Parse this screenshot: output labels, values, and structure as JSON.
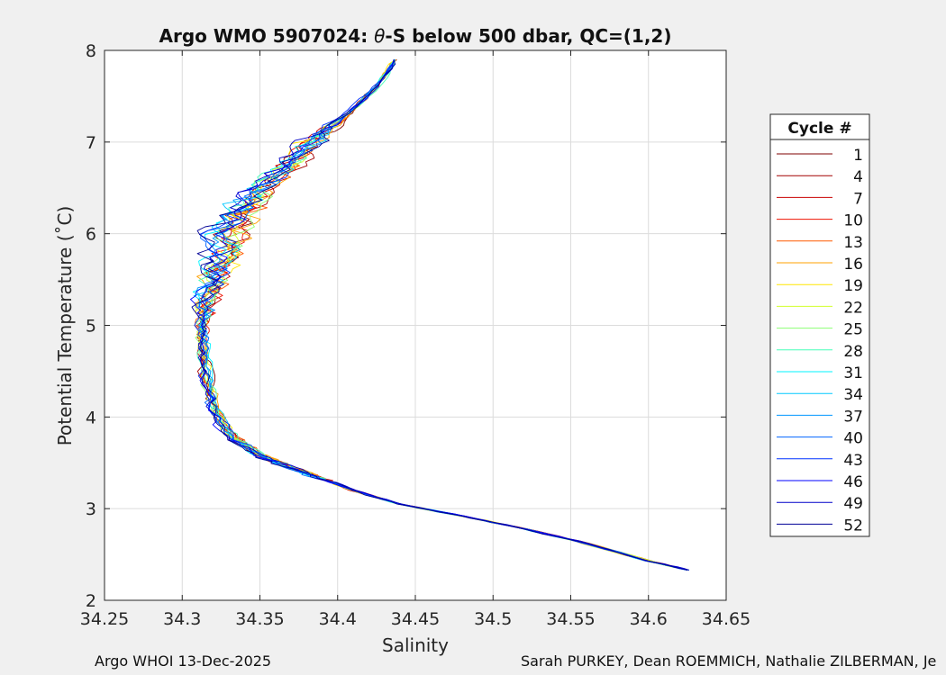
{
  "chart_data": {
    "type": "line",
    "title_prefix": "Argo WMO 5907024: ",
    "title_theta": "θ",
    "title_suffix": "-S below 500 dbar,  QC=(1,2)",
    "xlabel": "Salinity",
    "ylabel": "Potential Temperature (˚C)",
    "xlim": [
      34.25,
      34.65
    ],
    "ylim": [
      2,
      8
    ],
    "xticks": [
      34.25,
      34.3,
      34.35,
      34.4,
      34.45,
      34.5,
      34.55,
      34.6,
      34.65
    ],
    "xtick_labels": [
      "34.25",
      "34.3",
      "34.35",
      "34.4",
      "34.45",
      "34.5",
      "34.55",
      "34.6",
      "34.65"
    ],
    "yticks": [
      2,
      3,
      4,
      5,
      6,
      7,
      8
    ],
    "ytick_labels": [
      "2",
      "3",
      "4",
      "5",
      "6",
      "7",
      "8"
    ],
    "grid": true,
    "legend": {
      "title": "Cycle #",
      "placement": "right",
      "entries": [
        {
          "label": "1",
          "color": "#7f0000"
        },
        {
          "label": "4",
          "color": "#a40000"
        },
        {
          "label": "7",
          "color": "#ca0000"
        },
        {
          "label": "10",
          "color": "#ef1200"
        },
        {
          "label": "13",
          "color": "#ff5a00"
        },
        {
          "label": "16",
          "color": "#ffa000"
        },
        {
          "label": "19",
          "color": "#ffe600"
        },
        {
          "label": "22",
          "color": "#d2ff2d"
        },
        {
          "label": "25",
          "color": "#8cff73"
        },
        {
          "label": "28",
          "color": "#46ffb9"
        },
        {
          "label": "31",
          "color": "#00f4ff"
        },
        {
          "label": "34",
          "color": "#00c8ff"
        },
        {
          "label": "37",
          "color": "#0096ff"
        },
        {
          "label": "40",
          "color": "#0064ff"
        },
        {
          "label": "43",
          "color": "#0032ff"
        },
        {
          "label": "46",
          "color": "#0000ff"
        },
        {
          "label": "49",
          "color": "#0000c8"
        },
        {
          "label": "52",
          "color": "#000096"
        }
      ]
    },
    "mean_profile": {
      "salinity": [
        34.626,
        34.6,
        34.56,
        34.52,
        34.48,
        34.44,
        34.41,
        34.39,
        34.37,
        34.35,
        34.335,
        34.325,
        34.318,
        34.315,
        34.314,
        34.313,
        34.315,
        34.318,
        34.323,
        34.33,
        34.338,
        34.35,
        34.365,
        34.38,
        34.395,
        34.41,
        34.425,
        34.437
      ],
      "theta": [
        2.33,
        2.43,
        2.62,
        2.78,
        2.92,
        3.05,
        3.2,
        3.33,
        3.45,
        3.58,
        3.75,
        3.95,
        4.2,
        4.5,
        4.8,
        5.0,
        5.2,
        5.45,
        5.7,
        5.95,
        6.2,
        6.45,
        6.7,
        6.95,
        7.15,
        7.35,
        7.6,
        7.9
      ]
    }
  },
  "footer": {
    "left": "Argo WHOI 13-Dec-2025",
    "right": "Sarah PURKEY, Dean ROEMMICH, Nathalie ZILBERMAN, Je"
  }
}
